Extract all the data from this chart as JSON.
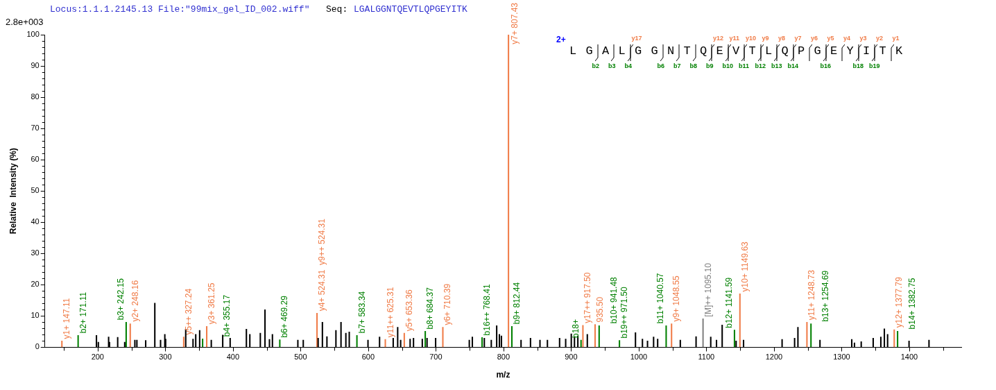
{
  "chart_data": {
    "type": "bar",
    "xlabel": "m/z",
    "ylabel": "Relative  Intensity (%)",
    "annotations": [
      "Locus:1.1.1.2145.13 File:\"99mix_gel_ID_002.wiff\"",
      "Seq:",
      "LGALGGNTQEVTLQPGEYITK",
      "2.8e+003",
      "2+",
      "y17",
      "y12",
      "y11",
      "y10",
      "y9",
      "y8",
      "y7",
      "y6",
      "y5",
      "y4",
      "y3",
      "y2",
      "y1",
      "b2",
      "b3",
      "b4",
      "b6",
      "b7",
      "b8",
      "b9",
      "b10",
      "b11",
      "b12",
      "b13",
      "b14",
      "b16",
      "b18",
      "b19",
      {
        "text": "y1+ 147.11",
        "x": 147.11,
        "y": 2.0
      },
      {
        "text": "y2+ 248.16",
        "x": 248.16,
        "y": 7.5
      },
      {
        "text": "y5++ 327.24",
        "x": 327.24,
        "y": 3.3
      },
      {
        "text": "y3+ 361.25",
        "x": 361.25,
        "y": 6.7
      },
      {
        "text": "y4+ 524.31  y9++ 524.31",
        "x": 524.31,
        "y": 10.9
      },
      {
        "text": "y11++ 625.31",
        "x": 625.31,
        "y": 2.5
      },
      {
        "text": "y5+ 653.36",
        "x": 653.36,
        "y": 4.5
      },
      {
        "text": "y6+ 710.39",
        "x": 710.39,
        "y": 6.4
      },
      {
        "text": "y7+ 807.43",
        "x": 807.43,
        "y": 100
      },
      {
        "text": "y17++ 917.50",
        "x": 917.5,
        "y": 7.0
      },
      {
        "text": "935.50",
        "x": 935.5,
        "y": 7.3
      },
      {
        "text": "y9+ 1048.55",
        "x": 1048.55,
        "y": 7.5
      },
      {
        "text": "y10+ 1149.63",
        "x": 1149.63,
        "y": 17.1
      },
      {
        "text": "y11+ 1248.73",
        "x": 1248.73,
        "y": 8.0
      },
      {
        "text": "y12+ 1377.79",
        "x": 1377.79,
        "y": 5.6
      },
      {
        "text": "b2+ 171.11",
        "x": 171.11,
        "y": 3.8
      },
      {
        "text": "b3+ 242.15",
        "x": 242.15,
        "y": 8.0
      },
      {
        "text": "b4+ 355.17",
        "x": 355.17,
        "y": 2.7
      },
      {
        "text": "b6+ 469.29",
        "x": 469.29,
        "y": 2.4
      },
      {
        "text": "b7+ 583.34",
        "x": 583.34,
        "y": 3.8
      },
      {
        "text": "b8+ 684.37",
        "x": 684.37,
        "y": 5.1
      },
      {
        "text": "b16++ 768.41",
        "x": 768.41,
        "y": 3.1
      },
      {
        "text": "b9+ 812.44",
        "x": 812.44,
        "y": 6.7
      },
      {
        "text": "b18+",
        "x": 914.7,
        "y": 2.3
      },
      {
        "text": "b10+ 941.48",
        "x": 941.48,
        "y": 6.9
      },
      {
        "text": "b19++ 971.50",
        "x": 971.5,
        "y": 2.2
      },
      {
        "text": "b11+ 1040.57",
        "x": 1040.57,
        "y": 6.9
      },
      {
        "text": "b12+ 1141.59",
        "x": 1141.59,
        "y": 5.5
      },
      {
        "text": "b13+ 1254.69",
        "x": 1254.69,
        "y": 7.5
      },
      {
        "text": "b14+ 1382.75",
        "x": 1382.75,
        "y": 5.1
      },
      {
        "text": "[M]++ 1095.10",
        "x": 1095.1,
        "y": 9.1
      }
    ],
    "xlim": [
      122,
      1477
    ],
    "xticks": [
      {
        "value": 150,
        "label": null
      },
      200,
      {
        "value": 250,
        "label": null
      },
      300,
      {
        "value": 350,
        "label": null
      },
      400,
      {
        "value": 450,
        "label": null
      },
      500,
      {
        "value": 550,
        "label": null
      },
      600,
      {
        "value": 650,
        "label": null
      },
      700,
      {
        "value": 750,
        "label": null
      },
      800,
      {
        "value": 850,
        "label": null
      },
      900,
      {
        "value": 950,
        "label": null
      },
      1000,
      {
        "value": 1050,
        "label": null
      },
      1100,
      {
        "value": 1150,
        "label": null
      },
      1200,
      {
        "value": 1250,
        "label": null
      },
      1300,
      {
        "value": 1350,
        "label": null
      },
      1400,
      {
        "value": 1450,
        "label": null
      }
    ],
    "ylim": [
      0,
      100
    ],
    "yticks": [
      0,
      {
        "value": 2,
        "label": null
      },
      {
        "value": 4,
        "label": null
      },
      {
        "value": 6,
        "label": null
      },
      {
        "value": 8,
        "label": null
      },
      10,
      {
        "value": 12,
        "label": null
      },
      {
        "value": 14,
        "label": null
      },
      {
        "value": 16,
        "label": null
      },
      {
        "value": 18,
        "label": null
      },
      20,
      {
        "value": 22,
        "label": null
      },
      {
        "value": 24,
        "label": null
      },
      {
        "value": 26,
        "label": null
      },
      {
        "value": 28,
        "label": null
      },
      30,
      {
        "value": 32,
        "label": null
      },
      {
        "value": 34,
        "label": null
      },
      {
        "value": 36,
        "label": null
      },
      {
        "value": 38,
        "label": null
      },
      40,
      {
        "value": 42,
        "label": null
      },
      {
        "value": 44,
        "label": null
      },
      {
        "value": 46,
        "label": null
      },
      {
        "value": 48,
        "label": null
      },
      50,
      {
        "value": 52,
        "label": null
      },
      {
        "value": 54,
        "label": null
      },
      {
        "value": 56,
        "label": null
      },
      {
        "value": 58,
        "label": null
      },
      60,
      {
        "value": 62,
        "label": null
      },
      {
        "value": 64,
        "label": null
      },
      {
        "value": 66,
        "label": null
      },
      {
        "value": 68,
        "label": null
      },
      70,
      {
        "value": 72,
        "label": null
      },
      {
        "value": 74,
        "label": null
      },
      {
        "value": 76,
        "label": null
      },
      {
        "value": 78,
        "label": null
      },
      80,
      {
        "value": 82,
        "label": null
      },
      {
        "value": 84,
        "label": null
      },
      {
        "value": 86,
        "label": null
      },
      {
        "value": 88,
        "label": null
      },
      90,
      {
        "value": 92,
        "label": null
      },
      {
        "value": 94,
        "label": null
      },
      {
        "value": 96,
        "label": null
      },
      {
        "value": 98,
        "label": null
      },
      100
    ],
    "grid": false,
    "legend": false,
    "series": [
      {
        "color": "#000000",
        "x": [
          198.2,
          201,
          216.2,
          217.5,
          229.6,
          240,
          255,
          258,
          271,
          284.5,
          293,
          299.3,
          300.5,
          330.2,
          341,
          345,
          350.8,
          368,
          384.9,
          395.9,
          419.9,
          425,
          440.5,
          447.4,
          454,
          458.4,
          496,
          504,
          526,
          532.3,
          539,
          552.3,
          559.8,
          567,
          572,
          599.7,
          616.8,
          637,
          643.6,
          648,
          662,
          667,
          680,
          687,
          699.7,
          749.5,
          754,
          771.7,
          782,
          790,
          794,
          797,
          826,
          840,
          854,
          865,
          883,
          892,
          900.3,
          905,
          910,
          924,
          995.2,
          1005.5,
          1013,
          1022,
          1028,
          1061.5,
          1084.8,
          1106.5,
          1115,
          1123.4,
          1144,
          1155,
          1212,
          1230.5,
          1235.4,
          1268,
          1315,
          1319,
          1329,
          1346.7,
          1358,
          1363.2,
          1368,
          1399.7,
          1429.2
        ],
        "values": [
          3.8,
          1.6,
          3.3,
          1.6,
          3.2,
          1.6,
          2.3,
          2.3,
          2.2,
          14.1,
          2.3,
          4.1,
          2.6,
          5.8,
          2.6,
          4.1,
          5.4,
          2.3,
          3.9,
          2.9,
          5.8,
          4.1,
          4.5,
          12.0,
          2.5,
          4.1,
          2.3,
          2.3,
          2.9,
          8.0,
          3.4,
          5.4,
          8.0,
          4.5,
          4.9,
          2.3,
          3.3,
          2.9,
          6.4,
          2.3,
          2.6,
          2.9,
          2.6,
          2.9,
          2.9,
          2.3,
          3.3,
          2.9,
          2.3,
          6.9,
          4.1,
          3.6,
          2.3,
          2.9,
          2.3,
          2.3,
          2.9,
          2.6,
          4.3,
          3.4,
          3.6,
          4.1,
          4.7,
          2.6,
          2.0,
          3.3,
          2.6,
          2.3,
          3.4,
          3.3,
          2.3,
          7.1,
          2.0,
          2.3,
          2.5,
          2.9,
          6.4,
          2.3,
          2.5,
          1.4,
          1.8,
          2.9,
          3.3,
          5.9,
          4.1,
          2.0,
          2.3
        ]
      },
      {
        "color": "#f07c48",
        "x": [
          147.11,
          248.16,
          327.24,
          361.25,
          524.31,
          625.31,
          653.36,
          710.39,
          807.43,
          917.5,
          935.5,
          1048.55,
          1149.63,
          1248.73,
          1377.79
        ],
        "values": [
          2.0,
          7.5,
          3.3,
          6.7,
          10.9,
          2.5,
          4.5,
          6.4,
          100,
          7.0,
          7.3,
          7.5,
          17.1,
          8.0,
          5.6
        ]
      },
      {
        "color": "#008000",
        "x": [
          171.11,
          242.15,
          355.17,
          469.29,
          583.34,
          684.37,
          768.41,
          812.44,
          914.7,
          941.48,
          971.5,
          1040.57,
          1141.59,
          1254.69,
          1382.75
        ],
        "values": [
          3.8,
          8.0,
          2.7,
          2.4,
          3.8,
          5.1,
          3.1,
          6.7,
          2.3,
          6.9,
          2.2,
          6.9,
          5.5,
          7.5,
          5.1
        ]
      },
      {
        "color": "#808080",
        "x": [
          1095.1
        ],
        "values": [
          9.1
        ]
      }
    ]
  }
}
